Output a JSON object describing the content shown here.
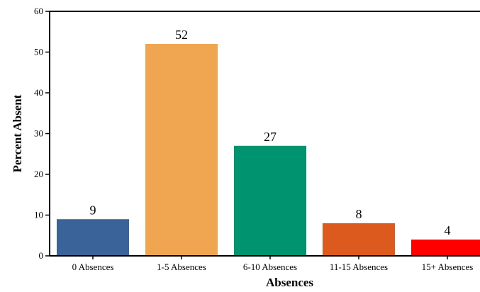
{
  "chart_data": {
    "type": "bar",
    "categories": [
      "0 Absences",
      "1-5 Absences",
      "6-10 Absences",
      "11-15 Absences",
      "15+ Absences"
    ],
    "values": [
      9,
      52,
      27,
      8,
      4
    ],
    "value_labels": [
      "9",
      "52",
      "27",
      "8",
      "4"
    ],
    "colors": [
      "#3a6499",
      "#f0a650",
      "#00936f",
      "#dd5a1f",
      "#ff0000"
    ],
    "title": "",
    "xlabel": "Absences",
    "ylabel": "Percent Absent",
    "ylim": [
      0,
      60
    ],
    "yticks": [
      "0",
      "10",
      "20",
      "30",
      "40",
      "50",
      "60"
    ],
    "grid": false,
    "legend": false
  }
}
